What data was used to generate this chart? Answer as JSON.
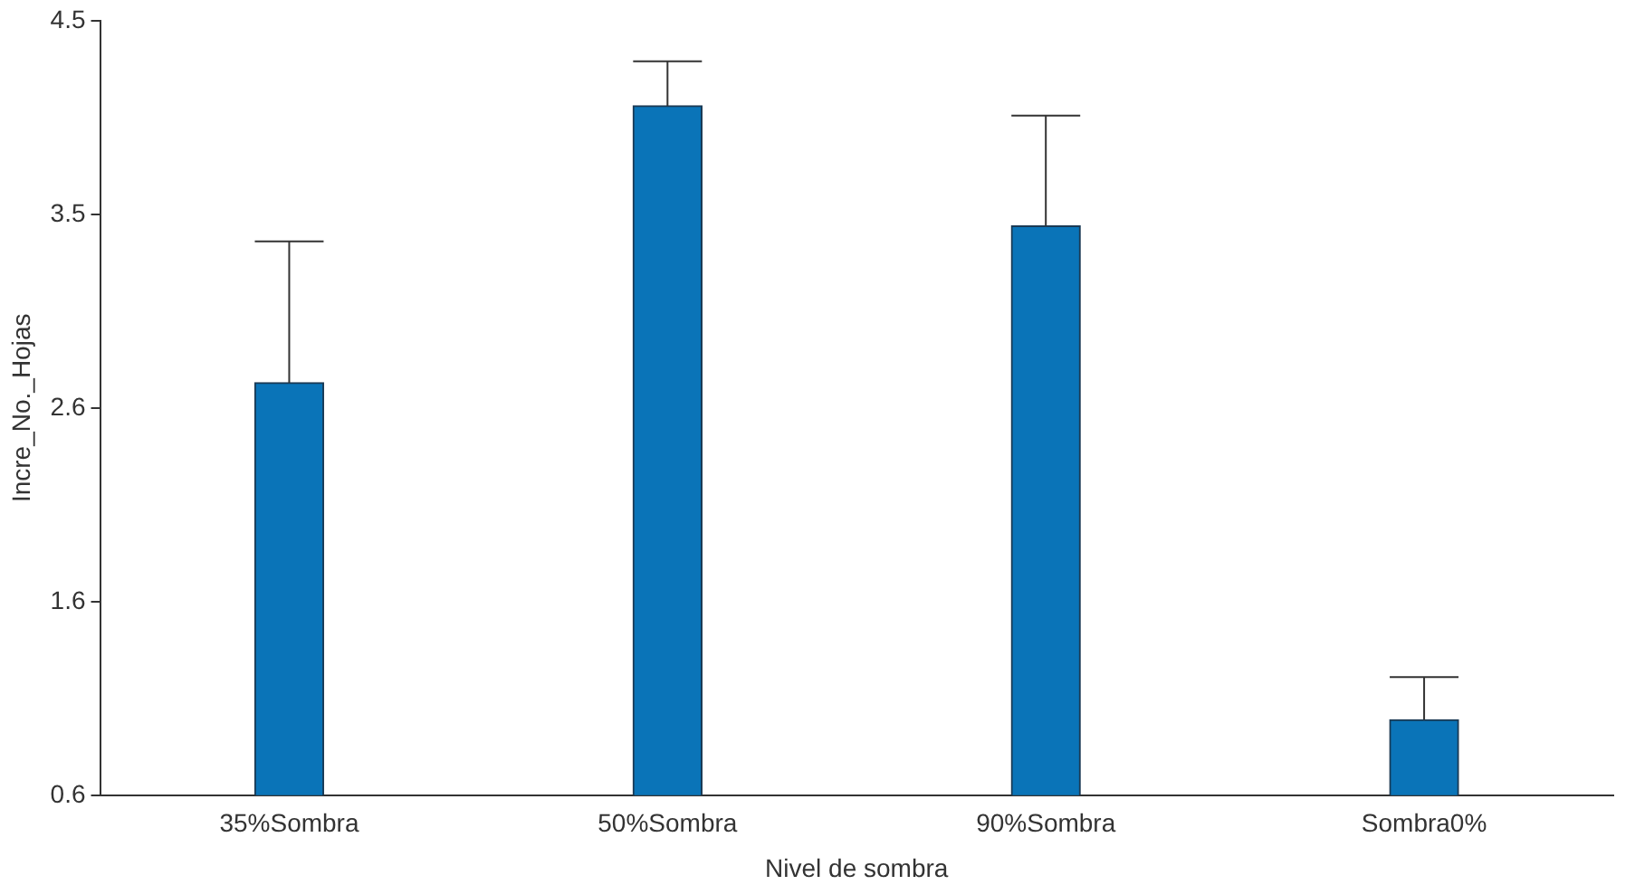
{
  "chart_data": {
    "type": "bar",
    "xlabel": "Nivel de sombra",
    "ylabel": "Incre_No._Hojas",
    "categories": [
      "35%Sombra",
      "50%Sombra",
      "90%Sombra",
      "Sombra0%"
    ],
    "values": [
      2.68,
      4.11,
      3.49,
      0.94
    ],
    "errors": [
      [
        2.68,
        3.41
      ],
      [
        4.11,
        4.34
      ],
      [
        3.49,
        4.06
      ],
      [
        0.94,
        1.16
      ]
    ],
    "color": "#0a74b8",
    "ylim": [
      0.55,
      4.55
    ],
    "yticks": [
      {
        "value": 0.55,
        "label": "0.6"
      },
      {
        "value": 1.55,
        "label": "1.6"
      },
      {
        "value": 2.55,
        "label": "2.6"
      },
      {
        "value": 3.55,
        "label": "3.5"
      },
      {
        "value": 4.55,
        "label": "4.5"
      }
    ],
    "grid": false,
    "legend": false
  }
}
